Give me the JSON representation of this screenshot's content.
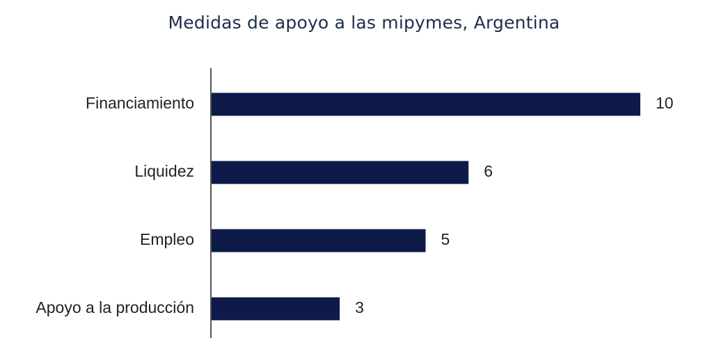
{
  "chart_data": {
    "type": "bar",
    "orientation": "horizontal",
    "title": "Medidas de apoyo a las mipymes, Argentina",
    "categories": [
      "Financiamiento",
      "Liquidez",
      "Empleo",
      "Apoyo a la producción"
    ],
    "values": [
      10,
      6,
      5,
      3
    ],
    "data_labels": [
      "10",
      "6",
      "5",
      "3"
    ],
    "xlim": [
      0,
      10
    ],
    "grid": false,
    "bar_color": "#0d1a4a",
    "axis_color": "#555555"
  }
}
